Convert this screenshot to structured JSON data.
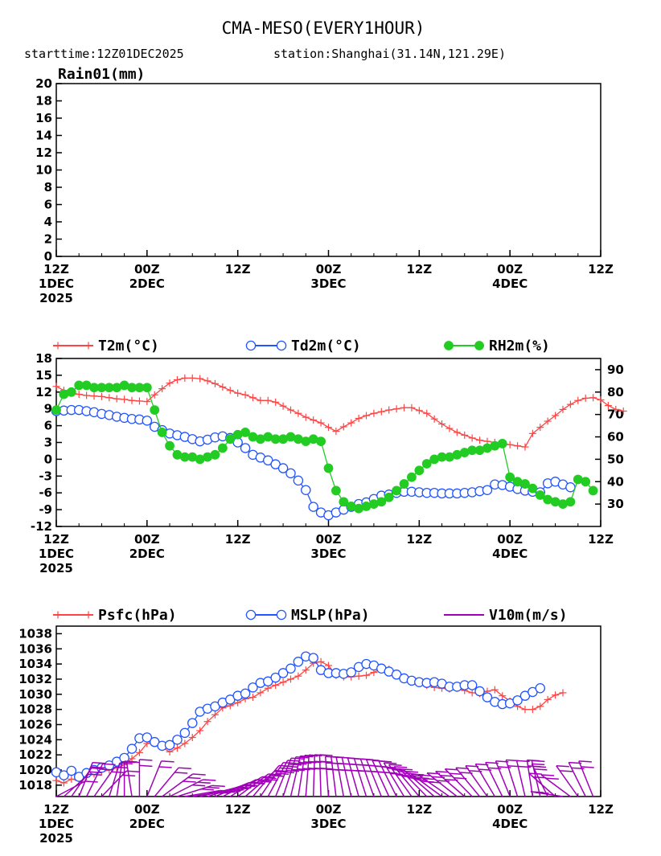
{
  "figure": {
    "title": "CMA-MESO(EVERY1HOUR)",
    "subtitle_start": "starttime:12Z01DEC2025",
    "subtitle_station": "station:Shanghai(31.14N,121.29E)"
  },
  "colors": {
    "t2m": "#ff4444",
    "td2m": "#2255ff",
    "rh2m": "#22cc22",
    "psfc": "#ff4444",
    "mslp": "#2255ff",
    "wind": "#a000b8"
  },
  "time_axis": {
    "hours_min": 0,
    "hours_max": 72,
    "ticks": [
      {
        "hour": 0,
        "lines": [
          "12Z",
          "1DEC",
          "2025"
        ]
      },
      {
        "hour": 12,
        "lines": [
          "00Z",
          "2DEC"
        ]
      },
      {
        "hour": 24,
        "lines": [
          "12Z"
        ]
      },
      {
        "hour": 36,
        "lines": [
          "00Z",
          "3DEC"
        ]
      },
      {
        "hour": 48,
        "lines": [
          "12Z"
        ]
      },
      {
        "hour": 60,
        "lines": [
          "00Z",
          "4DEC"
        ]
      },
      {
        "hour": 72,
        "lines": [
          "12Z"
        ]
      }
    ]
  },
  "chart_data": [
    {
      "type": "bar",
      "title": "Rain01(mm)",
      "ylabel": "Rain01(mm)",
      "ylim": [
        0,
        20
      ],
      "yticks": [
        0,
        2,
        4,
        6,
        8,
        10,
        12,
        14,
        16,
        18,
        20
      ],
      "x_hours_step": 1,
      "values": []
    },
    {
      "type": "line",
      "x_hours_step": 1,
      "y_left_lim": [
        -12,
        18
      ],
      "y_left_ticks": [
        -12,
        -9,
        -6,
        -3,
        0,
        3,
        6,
        9,
        12,
        15,
        18
      ],
      "y_right_lim": [
        20,
        95
      ],
      "y_right_ticks": [
        30,
        40,
        50,
        60,
        70,
        80,
        90
      ],
      "series": [
        {
          "key": "t2m",
          "name": "T2m(°C)",
          "axis": "left",
          "marker": "plus",
          "values": [
            13.0,
            12.3,
            11.9,
            11.6,
            11.4,
            11.3,
            11.2,
            11.0,
            10.8,
            10.7,
            10.5,
            10.4,
            10.3,
            11.5,
            12.6,
            13.6,
            14.2,
            14.5,
            14.5,
            14.4,
            14.0,
            13.5,
            12.9,
            12.3,
            11.8,
            11.5,
            11.0,
            10.5,
            10.5,
            10.2,
            9.5,
            8.8,
            8.2,
            7.5,
            7.0,
            6.5,
            5.7,
            5.0,
            5.8,
            6.5,
            7.3,
            7.8,
            8.2,
            8.5,
            8.8,
            9.0,
            9.2,
            9.2,
            8.7,
            8.2,
            7.2,
            6.3,
            5.5,
            4.8,
            4.3,
            3.8,
            3.4,
            3.2,
            3.0,
            2.8,
            2.6,
            2.4,
            2.2,
            4.6,
            5.7,
            6.8,
            7.8,
            8.9,
            9.8,
            10.5,
            10.9,
            11.0,
            10.6,
            9.6,
            8.9,
            8.6
          ]
        },
        {
          "key": "td2m",
          "name": "Td2m(°C)",
          "axis": "left",
          "marker": "circle",
          "values": [
            8.6,
            8.7,
            8.8,
            8.8,
            8.6,
            8.4,
            8.1,
            7.9,
            7.6,
            7.4,
            7.2,
            7.1,
            6.9,
            5.8,
            5.2,
            4.6,
            4.3,
            4.0,
            3.6,
            3.2,
            3.5,
            3.9,
            4.1,
            3.8,
            3.0,
            2.0,
            0.8,
            0.3,
            -0.2,
            -0.9,
            -1.6,
            -2.5,
            -3.8,
            -5.5,
            -8.5,
            -9.5,
            -10.0,
            -9.5,
            -9.0,
            -8.5,
            -8.0,
            -7.7,
            -7.1,
            -6.5,
            -6.3,
            -6.0,
            -5.8,
            -5.8,
            -5.9,
            -6.0,
            -6.0,
            -6.1,
            -6.1,
            -6.1,
            -6.0,
            -5.9,
            -5.7,
            -5.5,
            -4.5,
            -4.6,
            -4.9,
            -5.3,
            -5.6,
            -5.8,
            -5.9,
            -4.3,
            -4.0,
            -4.5,
            -5.0
          ]
        },
        {
          "key": "rh2m",
          "name": "RH2m(%)",
          "axis": "right",
          "marker": "dot",
          "values": [
            72,
            79,
            80,
            83,
            83,
            82,
            82,
            82,
            82,
            83,
            82,
            82,
            82,
            72,
            62,
            56,
            52,
            51,
            51,
            50,
            51,
            52,
            55,
            59,
            61,
            62,
            60,
            59,
            60,
            59,
            59,
            60,
            59,
            58,
            59,
            58,
            46,
            36,
            31,
            29,
            28,
            29,
            30,
            31,
            33,
            36,
            39,
            42,
            45,
            48,
            50,
            51,
            51,
            52,
            53,
            54,
            54,
            55,
            56,
            57,
            42,
            40,
            39,
            37,
            34,
            32,
            31,
            30,
            31,
            41,
            40,
            36
          ]
        }
      ]
    },
    {
      "type": "line",
      "x_hours_step": 1,
      "ylim": [
        1016.5,
        1039
      ],
      "yticks": [
        1018,
        1020,
        1022,
        1024,
        1026,
        1028,
        1030,
        1032,
        1034,
        1036,
        1038
      ],
      "series": [
        {
          "key": "psfc",
          "name": "Psfc(hPa)",
          "marker": "plus",
          "values": [
            1018.6,
            1018.3,
            1018.8,
            1018.6,
            1019.1,
            1019.5,
            1019.8,
            1020.0,
            1020.3,
            1020.7,
            1021.5,
            1022.3,
            1023.5,
            1023.8,
            1023.0,
            1022.4,
            1022.9,
            1023.5,
            1024.3,
            1025.2,
            1026.4,
            1027.3,
            1028.2,
            1028.5,
            1028.9,
            1029.4,
            1029.6,
            1030.2,
            1030.8,
            1031.2,
            1031.6,
            1032.0,
            1032.4,
            1033.2,
            1034.1,
            1034.3,
            1033.8,
            1032.5,
            1032.3,
            1032.3,
            1032.4,
            1032.5,
            1032.9,
            1033.4,
            1033.3,
            1032.8,
            1032.3,
            1031.9,
            1031.5,
            1031.2,
            1030.9,
            1030.8,
            1030.7,
            1030.8,
            1030.5,
            1030.2,
            1030.1,
            1030.4,
            1030.6,
            1029.8,
            1029.1,
            1028.4,
            1028.0,
            1028.0,
            1028.4,
            1029.3,
            1029.9,
            1030.2
          ]
        },
        {
          "key": "mslp",
          "name": "MSLP(hPa)",
          "marker": "circle",
          "values": [
            1019.7,
            1019.3,
            1019.9,
            1019.1,
            1019.6,
            1020.0,
            1020.3,
            1020.6,
            1021.1,
            1021.6,
            1022.8,
            1024.2,
            1024.3,
            1023.7,
            1023.2,
            1023.3,
            1024.0,
            1024.9,
            1026.2,
            1027.7,
            1028.1,
            1028.4,
            1028.9,
            1029.3,
            1029.8,
            1030.1,
            1030.9,
            1031.5,
            1031.7,
            1032.2,
            1032.8,
            1033.4,
            1034.3,
            1035.0,
            1034.8,
            1033.2,
            1032.8,
            1032.8,
            1032.7,
            1032.9,
            1033.6,
            1034.0,
            1033.8,
            1033.4,
            1033.0,
            1032.6,
            1032.1,
            1031.8,
            1031.6,
            1031.5,
            1031.6,
            1031.4,
            1031.0,
            1031.0,
            1031.2,
            1031.2,
            1030.4,
            1029.6,
            1029.0,
            1028.7,
            1028.8,
            1029.2,
            1029.8,
            1030.3,
            1030.8
          ]
        },
        {
          "key": "wind",
          "name": "V10m(m/s)",
          "marker": "barb",
          "direction_deg": [
            250,
            235,
            220,
            205,
            210,
            220,
            230,
            200,
            190,
            180,
            170,
            180,
            205,
            225,
            240,
            250,
            260,
            268,
            272,
            276,
            280,
            285,
            290,
            295,
            300,
            305,
            315,
            322,
            328,
            335,
            340,
            345,
            350,
            355,
            358,
            2,
            5,
            8,
            12,
            15,
            18,
            20,
            22,
            25,
            28,
            30,
            35,
            40,
            45,
            50,
            55,
            60,
            62,
            58,
            55,
            50,
            45,
            40,
            35,
            30,
            25,
            20,
            15,
            10,
            15,
            30,
            55,
            90,
            120,
            140,
            150,
            155
          ],
          "speed_ms": [
            2,
            2,
            3,
            3,
            3,
            3,
            3,
            2,
            2,
            2,
            2,
            3,
            4,
            4,
            5,
            5,
            5,
            5,
            5,
            5,
            5,
            5,
            5,
            5,
            5,
            5,
            6,
            6,
            6,
            6,
            6,
            6,
            6,
            6,
            6,
            6,
            5,
            5,
            5,
            5,
            5,
            5,
            5,
            5,
            5,
            5,
            5,
            5,
            5,
            5,
            5,
            5,
            5,
            5,
            5,
            5,
            4,
            4,
            4,
            4,
            4,
            4,
            3,
            3,
            3,
            3,
            3,
            3,
            4,
            4,
            4,
            4
          ]
        }
      ]
    }
  ]
}
